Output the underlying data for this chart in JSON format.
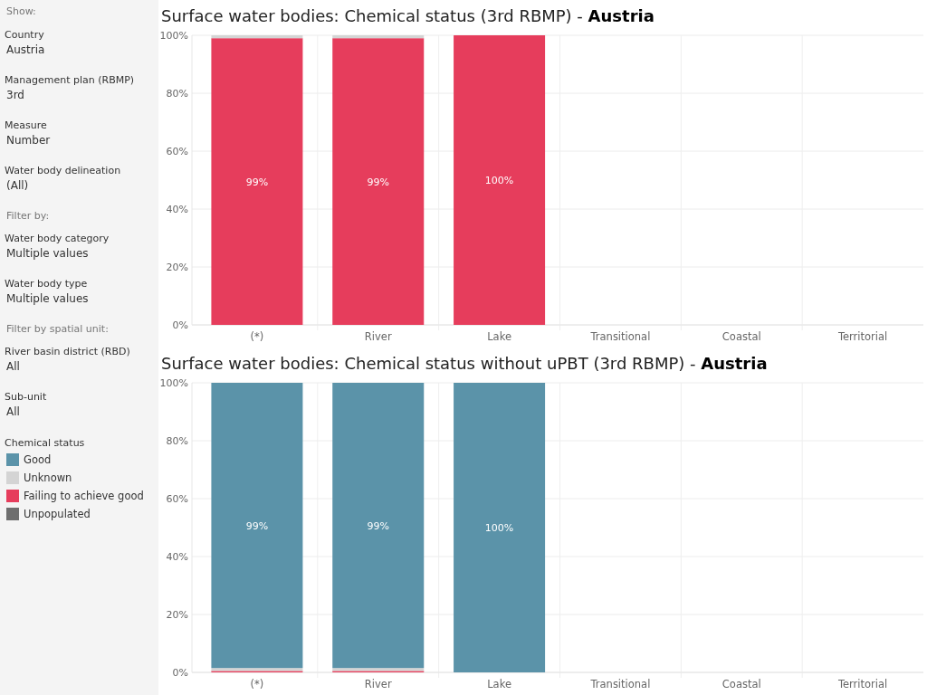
{
  "chart_data": [
    {
      "type": "other",
      "annotations": [
        "Show:",
        "Country",
        "Austria",
        "Management plan (RBMP)",
        "3rd",
        "Measure",
        "Number",
        "Water body delineation",
        "(All)",
        "Filter by:",
        "Water body category",
        "Multiple values",
        "Water body type",
        "Multiple values",
        "Filter by spatial unit:",
        "River basin district (RBD)",
        "All",
        "Sub-unit",
        "All"
      ]
    },
    {
      "type": "bar",
      "stacked": true,
      "title": "Surface water bodies: Chemical status (3rd RBMP) - Austria",
      "categories": [
        "(*)",
        "River",
        "Lake",
        "Transitional",
        "Coastal",
        "Territorial"
      ],
      "ylim": [
        0,
        100
      ],
      "yticks": [
        {
          "value": 0,
          "label": "0%"
        },
        {
          "value": 20,
          "label": "20%"
        },
        {
          "value": 40,
          "label": "40%"
        },
        {
          "value": 60,
          "label": "60%"
        },
        {
          "value": 80,
          "label": "80%"
        },
        {
          "value": 100,
          "label": "100%"
        }
      ],
      "grid": "y",
      "legend": "left",
      "legend_title": "Chemical status",
      "series": [
        {
          "name": "Unpopulated",
          "color": "#6e6e6e",
          "values": [
            null,
            null,
            null,
            null,
            null,
            null
          ]
        },
        {
          "name": "Failing to achieve good",
          "color": "#e63d5c",
          "values": [
            99,
            99,
            100,
            null,
            null,
            null
          ],
          "value_labels": [
            "99%",
            "99%",
            "100%",
            null,
            null,
            null
          ]
        },
        {
          "name": "Unknown",
          "color": "#d4d4d4",
          "values": [
            1,
            1,
            null,
            null,
            null,
            null
          ]
        },
        {
          "name": "Good",
          "color": "#5b93a9",
          "values": [
            null,
            null,
            null,
            null,
            null,
            null
          ]
        }
      ]
    },
    {
      "type": "bar",
      "stacked": true,
      "title": "Surface water bodies: Chemical status without uPBT (3rd RBMP) - Austria",
      "categories": [
        "(*)",
        "River",
        "Lake",
        "Transitional",
        "Coastal",
        "Territorial"
      ],
      "ylim": [
        0,
        100
      ],
      "yticks": [
        {
          "value": 0,
          "label": "0%"
        },
        {
          "value": 20,
          "label": "20%"
        },
        {
          "value": 40,
          "label": "40%"
        },
        {
          "value": 60,
          "label": "60%"
        },
        {
          "value": 80,
          "label": "80%"
        },
        {
          "value": 100,
          "label": "100%"
        }
      ],
      "grid": "y",
      "series": [
        {
          "color": "#e63d5c",
          "values": [
            0.5,
            0.5,
            null,
            null,
            null,
            null
          ]
        },
        {
          "color": "#d4d4d4",
          "values": [
            1,
            1,
            null,
            null,
            null,
            null
          ]
        },
        {
          "color": "#5b93a9",
          "values": [
            98.5,
            98.5,
            100,
            null,
            null,
            null
          ],
          "value_labels": [
            "99%",
            "99%",
            "100%",
            null,
            null,
            null
          ]
        }
      ]
    }
  ]
}
